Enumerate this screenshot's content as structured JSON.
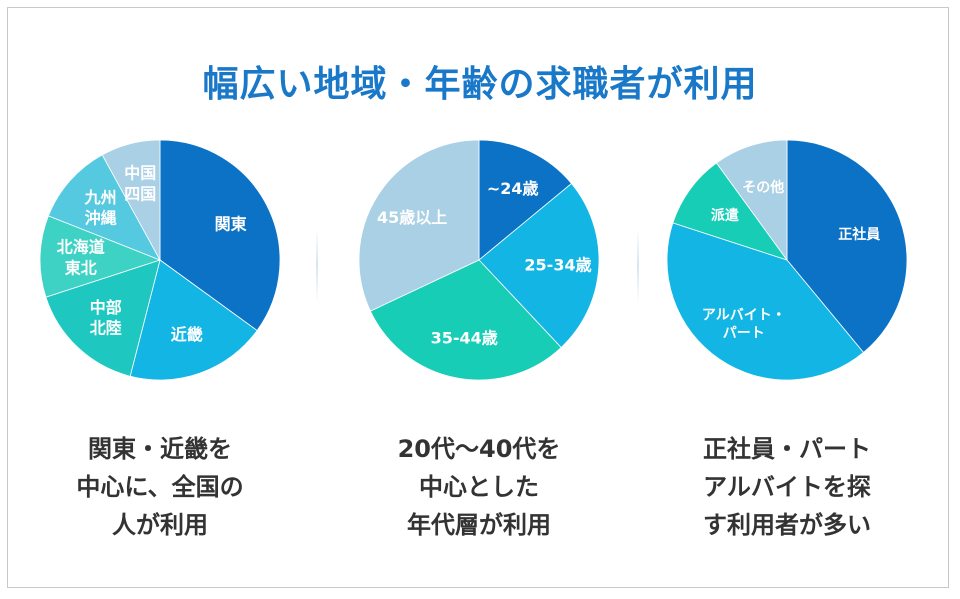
{
  "title": "幅広い地域・年齢の求職者が利用",
  "colors": {
    "title": "#1a78c8",
    "caption": "#333333",
    "dark_blue": "#0b72c6",
    "cyan": "#12b5e3",
    "teal": "#18cdb6",
    "mint": "#3ed2c4",
    "aqua": "#55c9df",
    "light_blue": "#a9d0e5"
  },
  "chart_data": [
    {
      "type": "pie",
      "title": "",
      "slices": [
        {
          "label": [
            "関東"
          ],
          "value": 35,
          "color": "#0b72c6"
        },
        {
          "label": [
            "近畿"
          ],
          "value": 19,
          "color": "#12b5e3"
        },
        {
          "label": [
            "中部",
            "北陸"
          ],
          "value": 16,
          "color": "#1ec8c0"
        },
        {
          "label": [
            "北海道",
            "東北"
          ],
          "value": 11,
          "color": "#3ed2c4"
        },
        {
          "label": [
            "九州",
            "沖縄"
          ],
          "value": 11,
          "color": "#55c9df"
        },
        {
          "label": [
            "中国",
            "四国"
          ],
          "value": 8,
          "color": "#a9d0e5"
        }
      ]
    },
    {
      "type": "pie",
      "title": "",
      "slices": [
        {
          "label": [
            "~24歳"
          ],
          "value": 14,
          "color": "#0b72c6"
        },
        {
          "label": [
            "25-34歳"
          ],
          "value": 24,
          "color": "#12b5e3"
        },
        {
          "label": [
            "35-44歳"
          ],
          "value": 30,
          "color": "#18cdb6"
        },
        {
          "label": [
            "45歳以上"
          ],
          "value": 32,
          "color": "#a9d0e5"
        }
      ]
    },
    {
      "type": "pie",
      "title": "",
      "slices": [
        {
          "label": [
            "正社員"
          ],
          "value": 39,
          "color": "#0b72c6"
        },
        {
          "label": [
            "アルバイト・",
            "パート"
          ],
          "value": 41,
          "color": "#12b5e3"
        },
        {
          "label": [
            "派遣"
          ],
          "value": 10,
          "color": "#18cdb6"
        },
        {
          "label": [
            "その他"
          ],
          "value": 10,
          "color": "#a9d0e5"
        }
      ]
    }
  ],
  "captions": [
    [
      "関東・近畿を",
      "中心に、全国の",
      "人が利用"
    ],
    [
      "20代～40代を",
      "中心とした",
      "年代層が利用"
    ],
    [
      "正社員・パート",
      "アルバイトを探",
      "す利用者が多い"
    ]
  ]
}
